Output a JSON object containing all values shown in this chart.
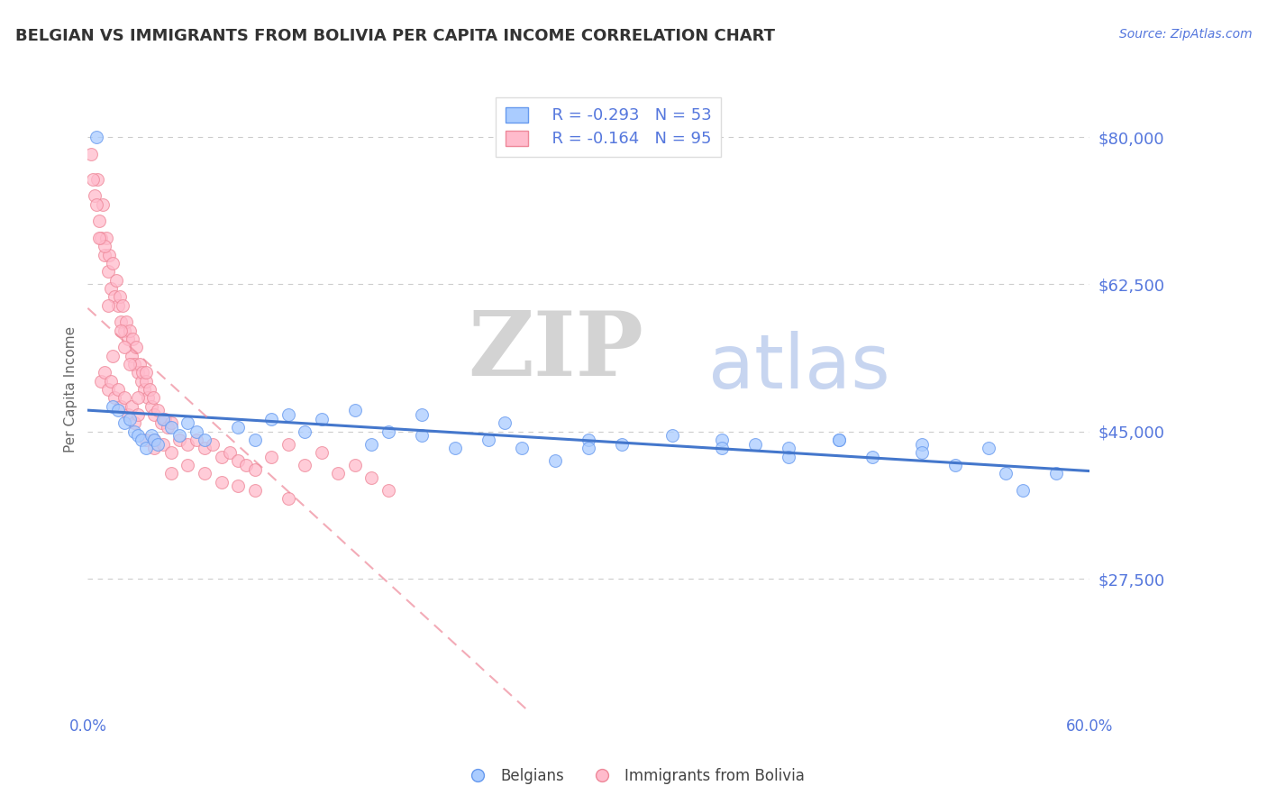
{
  "title": "BELGIAN VS IMMIGRANTS FROM BOLIVIA PER CAPITA INCOME CORRELATION CHART",
  "source": "Source: ZipAtlas.com",
  "ylabel": "Per Capita Income",
  "xlim": [
    0.0,
    0.6
  ],
  "ylim": [
    12000,
    88000
  ],
  "yticks": [
    27500,
    45000,
    62500,
    80000
  ],
  "ytick_labels": [
    "$27,500",
    "$45,000",
    "$62,500",
    "$80,000"
  ],
  "xticks": [
    0.0,
    0.1,
    0.2,
    0.3,
    0.4,
    0.5,
    0.6
  ],
  "xtick_labels": [
    "0.0%",
    "",
    "",
    "",
    "",
    "",
    "60.0%"
  ],
  "background_color": "#ffffff",
  "title_color": "#333333",
  "axis_color": "#5577dd",
  "grid_color": "#cccccc",
  "belgian_dot_face": "#aaccff",
  "belgian_dot_edge": "#6699ee",
  "bolivia_dot_face": "#ffbbcc",
  "bolivia_dot_edge": "#ee8899",
  "belgian_trend_color": "#4477cc",
  "bolivia_trend_color": "#ee8899",
  "legend_R1": "R = -0.293",
  "legend_N1": "N = 53",
  "legend_R2": "R = -0.164",
  "legend_N2": "N = 95",
  "belgian_x": [
    0.005,
    0.015,
    0.018,
    0.022,
    0.025,
    0.028,
    0.03,
    0.032,
    0.035,
    0.038,
    0.04,
    0.042,
    0.045,
    0.05,
    0.055,
    0.06,
    0.065,
    0.07,
    0.09,
    0.1,
    0.11,
    0.12,
    0.13,
    0.14,
    0.16,
    0.17,
    0.18,
    0.2,
    0.22,
    0.24,
    0.26,
    0.28,
    0.3,
    0.32,
    0.35,
    0.38,
    0.4,
    0.42,
    0.45,
    0.47,
    0.5,
    0.52,
    0.54,
    0.56,
    0.58,
    0.38,
    0.42,
    0.45,
    0.5,
    0.55,
    0.2,
    0.25,
    0.3
  ],
  "belgian_y": [
    80000,
    48000,
    47500,
    46000,
    46500,
    45000,
    44500,
    44000,
    43000,
    44500,
    44000,
    43500,
    46500,
    45500,
    44500,
    46000,
    45000,
    44000,
    45500,
    44000,
    46500,
    47000,
    45000,
    46500,
    47500,
    43500,
    45000,
    44500,
    43000,
    44000,
    43000,
    41500,
    44000,
    43500,
    44500,
    44000,
    43500,
    43000,
    44000,
    42000,
    43500,
    41000,
    43000,
    38000,
    40000,
    43000,
    42000,
    44000,
    42500,
    40000,
    47000,
    46000,
    43000
  ],
  "bolivia_x": [
    0.002,
    0.004,
    0.006,
    0.007,
    0.008,
    0.009,
    0.01,
    0.011,
    0.012,
    0.013,
    0.014,
    0.015,
    0.016,
    0.017,
    0.018,
    0.019,
    0.02,
    0.021,
    0.022,
    0.023,
    0.024,
    0.025,
    0.026,
    0.027,
    0.028,
    0.029,
    0.03,
    0.031,
    0.032,
    0.033,
    0.034,
    0.035,
    0.036,
    0.037,
    0.038,
    0.039,
    0.04,
    0.042,
    0.044,
    0.046,
    0.048,
    0.05,
    0.055,
    0.06,
    0.065,
    0.07,
    0.075,
    0.08,
    0.085,
    0.09,
    0.095,
    0.1,
    0.11,
    0.12,
    0.13,
    0.14,
    0.15,
    0.16,
    0.17,
    0.18,
    0.008,
    0.01,
    0.012,
    0.014,
    0.016,
    0.018,
    0.02,
    0.022,
    0.024,
    0.026,
    0.028,
    0.03,
    0.035,
    0.04,
    0.045,
    0.05,
    0.06,
    0.07,
    0.08,
    0.09,
    0.1,
    0.12,
    0.015,
    0.025,
    0.035,
    0.01,
    0.02,
    0.03,
    0.04,
    0.05,
    0.003,
    0.005,
    0.007,
    0.012,
    0.022
  ],
  "bolivia_y": [
    78000,
    73000,
    75000,
    70000,
    68000,
    72000,
    66000,
    68000,
    64000,
    66000,
    62000,
    65000,
    61000,
    63000,
    60000,
    61000,
    58000,
    60000,
    57000,
    58000,
    56000,
    57000,
    54000,
    56000,
    53000,
    55000,
    52000,
    53000,
    51000,
    52000,
    50000,
    51000,
    49000,
    50000,
    48000,
    49000,
    47000,
    47500,
    46000,
    46500,
    45500,
    46000,
    44000,
    43500,
    44000,
    43000,
    43500,
    42000,
    42500,
    41500,
    41000,
    40500,
    42000,
    43500,
    41000,
    42500,
    40000,
    41000,
    39500,
    38000,
    51000,
    52000,
    50000,
    51000,
    49000,
    50000,
    48000,
    49000,
    47000,
    48000,
    46000,
    47000,
    44000,
    43000,
    43500,
    42500,
    41000,
    40000,
    39000,
    38500,
    38000,
    37000,
    54000,
    53000,
    52000,
    67000,
    57000,
    49000,
    44000,
    40000,
    75000,
    72000,
    68000,
    60000,
    55000
  ]
}
